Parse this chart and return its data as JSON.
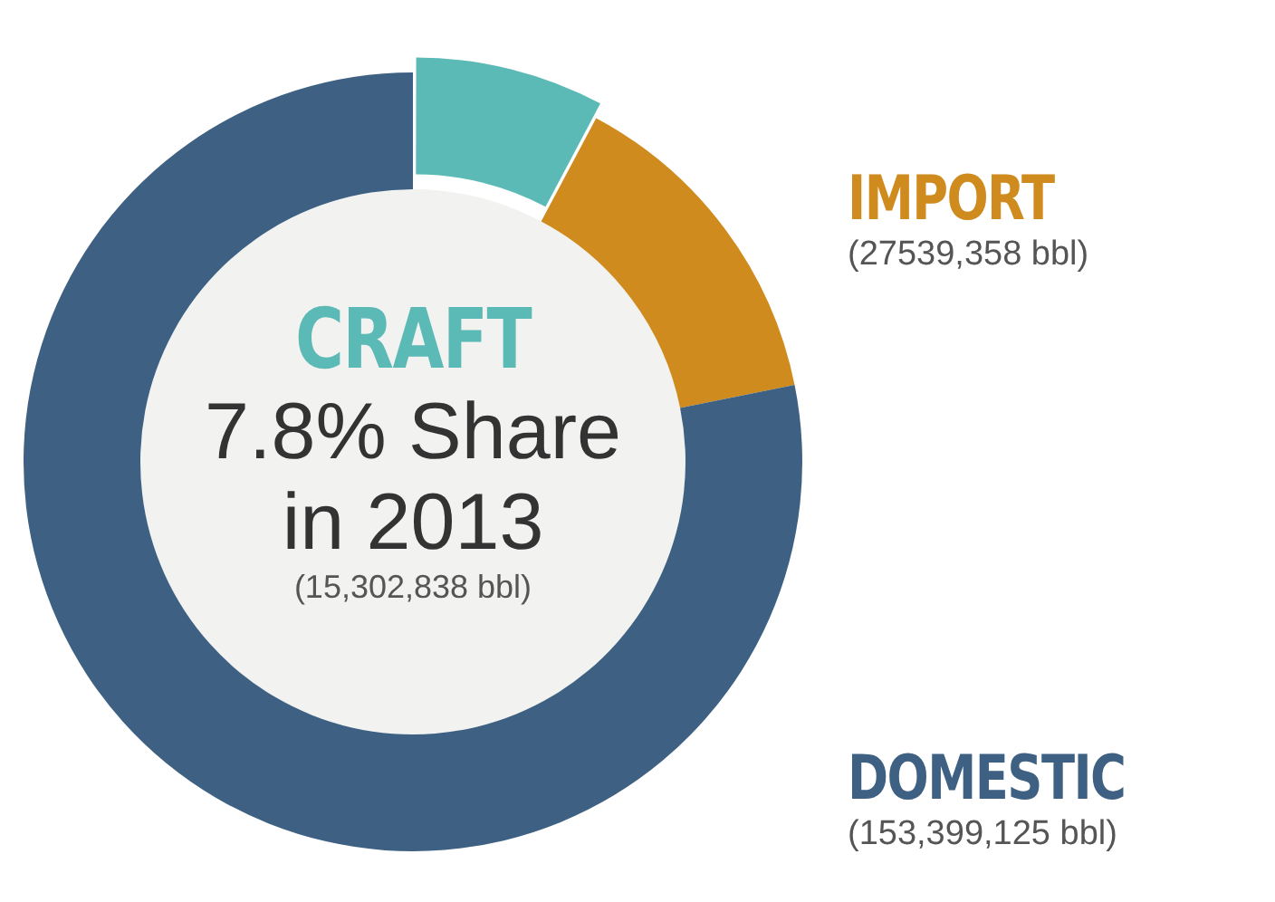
{
  "chart_data": {
    "type": "donut",
    "categories": [
      "CRAFT",
      "IMPORT",
      "DOMESTIC"
    ],
    "values": [
      15302838,
      27539358,
      153399125
    ],
    "colors": [
      "#5bbab6",
      "#d08b1f",
      "#3e6183"
    ],
    "value_labels": [
      null,
      "(27539,358 bbl)",
      "(153,399,125 bbl)"
    ],
    "annotations": [
      "7.8% Share in 2013",
      "(15,302,838 bbl)"
    ],
    "legend": false
  }
}
